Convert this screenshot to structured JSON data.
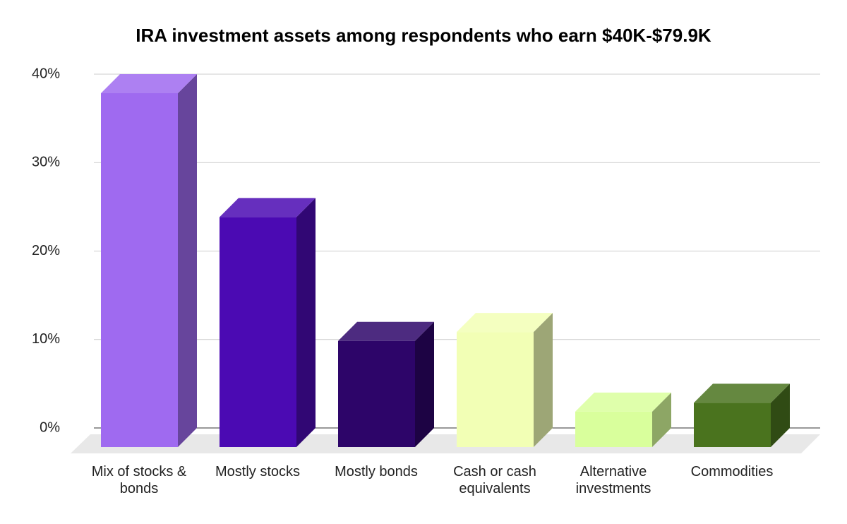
{
  "chart_data": {
    "type": "bar3d",
    "title": "IRA investment assets among respondents who earn $40K-$79.9K",
    "categories": [
      "Mix of stocks & bonds",
      "Mostly stocks",
      "Mostly bonds",
      "Cash or cash equivalents",
      "Alternative investments",
      "Commodities"
    ],
    "values": [
      40,
      26,
      12,
      13,
      4,
      5
    ],
    "colors": [
      "#9f6af0",
      "#4b0ab3",
      "#2d0569",
      "#f2ffb5",
      "#d9ff9c",
      "#4a731e"
    ],
    "ylim": [
      0,
      40
    ],
    "yticks": [
      {
        "value": 0,
        "label": "0%"
      },
      {
        "value": 10,
        "label": "10%"
      },
      {
        "value": 20,
        "label": "20%"
      },
      {
        "value": 30,
        "label": "30%"
      },
      {
        "value": 40,
        "label": "40%"
      }
    ],
    "grid": true
  }
}
